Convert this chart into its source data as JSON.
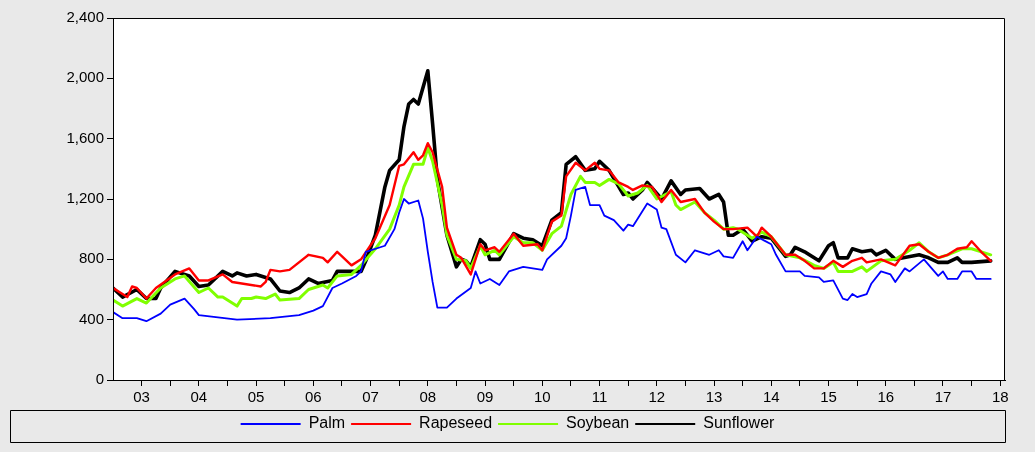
{
  "chart_data": {
    "type": "line",
    "xlim": [
      "2003-01",
      "2018-08"
    ],
    "ylim": [
      0,
      2400
    ],
    "xticks": [
      {
        "value": "2003-07",
        "label": "03"
      },
      {
        "value": "2004-01",
        "label": null
      },
      {
        "value": "2004-07",
        "label": "04"
      },
      {
        "value": "2005-01",
        "label": null
      },
      {
        "value": "2005-07",
        "label": "05"
      },
      {
        "value": "2006-01",
        "label": null
      },
      {
        "value": "2006-07",
        "label": "06"
      },
      {
        "value": "2007-01",
        "label": null
      },
      {
        "value": "2007-07",
        "label": "07"
      },
      {
        "value": "2008-01",
        "label": null
      },
      {
        "value": "2008-07",
        "label": "08"
      },
      {
        "value": "2009-01",
        "label": null
      },
      {
        "value": "2009-07",
        "label": "09"
      },
      {
        "value": "2010-01",
        "label": null
      },
      {
        "value": "2010-07",
        "label": "10"
      },
      {
        "value": "2011-01",
        "label": null
      },
      {
        "value": "2011-07",
        "label": "11"
      },
      {
        "value": "2012-01",
        "label": null
      },
      {
        "value": "2012-07",
        "label": "12"
      },
      {
        "value": "2013-01",
        "label": null
      },
      {
        "value": "2013-07",
        "label": "13"
      },
      {
        "value": "2014-01",
        "label": null
      },
      {
        "value": "2014-07",
        "label": "14"
      },
      {
        "value": "2015-01",
        "label": null
      },
      {
        "value": "2015-07",
        "label": "15"
      },
      {
        "value": "2016-01",
        "label": null
      },
      {
        "value": "2016-07",
        "label": "16"
      },
      {
        "value": "2017-01",
        "label": null
      },
      {
        "value": "2017-07",
        "label": "17"
      },
      {
        "value": "2018-01",
        "label": null
      },
      {
        "value": "2018-07",
        "label": "18"
      }
    ],
    "yticks": [
      {
        "value": 0,
        "label": "0"
      },
      {
        "value": 400,
        "label": "400"
      },
      {
        "value": 800,
        "label": "800"
      },
      {
        "value": 1200,
        "label": "1,200"
      },
      {
        "value": 1600,
        "label": "1,600"
      },
      {
        "value": 2000,
        "label": "2,000"
      },
      {
        "value": 2400,
        "label": "2,400"
      }
    ],
    "grid": false,
    "legend": "bottom",
    "marker": "none",
    "line_style": "solid",
    "series": [
      {
        "name": "Palm",
        "color": "#0000ff",
        "x": [
          "2003-01",
          "2003-03",
          "2003-06",
          "2003-08",
          "2003-11",
          "2004-01",
          "2004-04",
          "2004-06",
          "2004-07",
          "2005-03",
          "2005-10",
          "2006-04",
          "2006-07",
          "2006-09",
          "2006-11",
          "2007-01",
          "2007-04",
          "2007-05",
          "2007-06",
          "2007-10",
          "2007-12",
          "2008-01",
          "2008-02",
          "2008-03",
          "2008-05",
          "2008-06",
          "2008-07",
          "2008-08",
          "2008-09",
          "2008-11",
          "2009-01",
          "2009-04",
          "2009-05",
          "2009-06",
          "2009-08",
          "2009-10",
          "2009-12",
          "2010-03",
          "2010-07",
          "2010-08",
          "2010-11",
          "2010-12",
          "2011-01",
          "2011-02",
          "2011-04",
          "2011-05",
          "2011-07",
          "2011-08",
          "2011-10",
          "2011-12",
          "2012-01",
          "2012-02",
          "2012-05",
          "2012-07",
          "2012-08",
          "2012-09",
          "2012-11",
          "2013-01",
          "2013-03",
          "2013-06",
          "2013-08",
          "2013-09",
          "2013-11",
          "2014-01",
          "2014-02",
          "2014-04",
          "2014-07",
          "2014-08",
          "2014-10",
          "2015-01",
          "2015-02",
          "2015-05",
          "2015-06",
          "2015-08",
          "2015-10",
          "2015-11",
          "2015-12",
          "2016-01",
          "2016-03",
          "2016-04",
          "2016-06",
          "2016-08",
          "2016-09",
          "2016-11",
          "2016-12",
          "2017-03",
          "2017-06",
          "2017-07",
          "2017-08",
          "2017-10",
          "2017-11",
          "2018-01",
          "2018-02",
          "2018-05"
        ],
        "values": [
          450,
          410,
          410,
          390,
          440,
          500,
          540,
          470,
          430,
          400,
          410,
          430,
          460,
          490,
          610,
          640,
          690,
          720,
          850,
          890,
          1000,
          1110,
          1200,
          1170,
          1190,
          1070,
          850,
          650,
          480,
          480,
          540,
          610,
          720,
          640,
          670,
          630,
          720,
          750,
          730,
          800,
          890,
          940,
          1090,
          1260,
          1280,
          1160,
          1160,
          1090,
          1060,
          990,
          1030,
          1020,
          1170,
          1130,
          1010,
          1000,
          830,
          780,
          860,
          830,
          860,
          820,
          810,
          920,
          860,
          950,
          900,
          830,
          720,
          720,
          690,
          680,
          650,
          660,
          540,
          530,
          570,
          550,
          570,
          640,
          720,
          700,
          650,
          740,
          720,
          800,
          690,
          720,
          670,
          670,
          720,
          720,
          670,
          670
        ]
      },
      {
        "name": "Rapeseed",
        "color": "#ff0000",
        "x": [
          "2003-01",
          "2003-04",
          "2003-05",
          "2003-06",
          "2003-08",
          "2003-10",
          "2004-02",
          "2004-05",
          "2004-07",
          "2004-09",
          "2004-12",
          "2005-02",
          "2005-08",
          "2005-09",
          "2005-10",
          "2005-12",
          "2006-02",
          "2006-06",
          "2006-09",
          "2006-10",
          "2006-12",
          "2007-03",
          "2007-05",
          "2007-08",
          "2007-11",
          "2008-01",
          "2008-02",
          "2008-04",
          "2008-05",
          "2008-06",
          "2008-07",
          "2008-08",
          "2008-10",
          "2008-11",
          "2009-01",
          "2009-02",
          "2009-04",
          "2009-06",
          "2009-07",
          "2009-09",
          "2009-10",
          "2010-01",
          "2010-03",
          "2010-06",
          "2010-07",
          "2010-09",
          "2010-11",
          "2010-12",
          "2011-02",
          "2011-04",
          "2011-06",
          "2011-07",
          "2011-09",
          "2011-11",
          "2012-01",
          "2012-02",
          "2012-04",
          "2012-06",
          "2012-08",
          "2012-10",
          "2012-12",
          "2013-03",
          "2013-05",
          "2013-07",
          "2013-09",
          "2013-11",
          "2014-02",
          "2014-04",
          "2014-05",
          "2014-07",
          "2014-10",
          "2014-12",
          "2015-02",
          "2015-04",
          "2015-06",
          "2015-08",
          "2015-10",
          "2015-12",
          "2016-02",
          "2016-03",
          "2016-06",
          "2016-09",
          "2016-12",
          "2017-02",
          "2017-04",
          "2017-06",
          "2017-08",
          "2017-10",
          "2017-12",
          "2018-01",
          "2018-03",
          "2018-05"
        ],
        "values": [
          610,
          550,
          620,
          610,
          540,
          610,
          700,
          740,
          660,
          660,
          700,
          650,
          620,
          650,
          730,
          720,
          730,
          830,
          810,
          780,
          850,
          760,
          800,
          940,
          1160,
          1420,
          1430,
          1510,
          1460,
          1490,
          1570,
          1510,
          1280,
          1010,
          830,
          810,
          700,
          900,
          860,
          880,
          850,
          970,
          890,
          900,
          860,
          1050,
          1090,
          1350,
          1440,
          1390,
          1440,
          1400,
          1390,
          1310,
          1280,
          1260,
          1290,
          1280,
          1180,
          1260,
          1180,
          1200,
          1110,
          1050,
          1000,
          1000,
          1010,
          950,
          1010,
          950,
          830,
          830,
          790,
          740,
          740,
          790,
          750,
          790,
          810,
          780,
          800,
          760,
          890,
          900,
          850,
          810,
          830,
          870,
          880,
          920,
          850,
          790
        ]
      },
      {
        "name": "Soybean",
        "color": "#80ff00",
        "x": [
          "2003-01",
          "2003-03",
          "2003-06",
          "2003-08",
          "2003-11",
          "2004-02",
          "2004-04",
          "2004-07",
          "2004-09",
          "2004-11",
          "2004-12",
          "2005-03",
          "2005-04",
          "2005-06",
          "2005-07",
          "2005-09",
          "2005-11",
          "2005-12",
          "2006-04",
          "2006-06",
          "2006-09",
          "2006-10",
          "2006-12",
          "2007-03",
          "2007-05",
          "2007-08",
          "2007-11",
          "2008-01",
          "2008-02",
          "2008-04",
          "2008-05",
          "2008-06",
          "2008-07",
          "2008-08",
          "2008-10",
          "2008-11",
          "2009-01",
          "2009-03",
          "2009-04",
          "2009-06",
          "2009-07",
          "2009-09",
          "2009-10",
          "2010-01",
          "2010-03",
          "2010-05",
          "2010-07",
          "2010-09",
          "2010-11",
          "2011-01",
          "2011-03",
          "2011-04",
          "2011-06",
          "2011-07",
          "2011-09",
          "2011-11",
          "2012-01",
          "2012-03",
          "2012-05",
          "2012-07",
          "2012-10",
          "2012-11",
          "2012-12",
          "2013-03",
          "2013-05",
          "2013-07",
          "2013-09",
          "2013-11",
          "2013-12",
          "2014-03",
          "2014-05",
          "2014-07",
          "2014-10",
          "2015-01",
          "2015-04",
          "2015-06",
          "2015-08",
          "2015-09",
          "2015-12",
          "2016-02",
          "2016-03",
          "2016-06",
          "2016-09",
          "2016-12",
          "2017-02",
          "2017-04",
          "2017-06",
          "2017-08",
          "2017-11",
          "2018-01",
          "2018-05"
        ],
        "values": [
          530,
          490,
          540,
          510,
          610,
          670,
          690,
          580,
          610,
          550,
          550,
          490,
          540,
          540,
          550,
          540,
          570,
          530,
          540,
          600,
          630,
          610,
          690,
          700,
          760,
          870,
          1000,
          1160,
          1280,
          1430,
          1430,
          1430,
          1540,
          1450,
          1160,
          960,
          800,
          790,
          740,
          890,
          830,
          860,
          830,
          950,
          910,
          910,
          860,
          970,
          1020,
          1230,
          1350,
          1310,
          1310,
          1290,
          1330,
          1300,
          1220,
          1240,
          1290,
          1200,
          1250,
          1160,
          1130,
          1180,
          1110,
          1060,
          1000,
          1010,
          1000,
          940,
          980,
          950,
          830,
          810,
          760,
          740,
          780,
          720,
          720,
          750,
          720,
          790,
          800,
          860,
          910,
          850,
          810,
          830,
          870,
          870,
          830
        ]
      },
      {
        "name": "Sunflower",
        "color": "#000000",
        "x": [
          "2003-01",
          "2003-03",
          "2003-06",
          "2003-08",
          "2003-10",
          "2003-11",
          "2004-02",
          "2004-05",
          "2004-07",
          "2004-09",
          "2004-12",
          "2005-02",
          "2005-03",
          "2005-05",
          "2005-07",
          "2005-10",
          "2005-12",
          "2006-02",
          "2006-04",
          "2006-06",
          "2006-08",
          "2006-11",
          "2006-12",
          "2007-05",
          "2007-06",
          "2007-08",
          "2007-10",
          "2007-11",
          "2008-01",
          "2008-02",
          "2008-03",
          "2008-04",
          "2008-05",
          "2008-07",
          "2008-08",
          "2008-09",
          "2008-11",
          "2009-01",
          "2009-02",
          "2009-03",
          "2009-04",
          "2009-06",
          "2009-07",
          "2009-08",
          "2009-10",
          "2010-01",
          "2010-03",
          "2010-05",
          "2010-07",
          "2010-09",
          "2010-11",
          "2010-12",
          "2011-02",
          "2011-04",
          "2011-06",
          "2011-07",
          "2011-09",
          "2011-12",
          "2012-01",
          "2012-02",
          "2012-04",
          "2012-05",
          "2012-08",
          "2012-10",
          "2012-12",
          "2013-01",
          "2013-04",
          "2013-06",
          "2013-08",
          "2013-09",
          "2013-10",
          "2013-11",
          "2014-01",
          "2014-03",
          "2014-05",
          "2014-07",
          "2014-10",
          "2014-11",
          "2014-12",
          "2015-02",
          "2015-05",
          "2015-07",
          "2015-08",
          "2015-09",
          "2015-11",
          "2015-12",
          "2016-02",
          "2016-04",
          "2016-05",
          "2016-07",
          "2016-09",
          "2017-02",
          "2017-04",
          "2017-06",
          "2017-08",
          "2017-10",
          "2017-11",
          "2018-01",
          "2018-05"
        ],
        "values": [
          610,
          550,
          600,
          540,
          540,
          610,
          720,
          690,
          620,
          630,
          720,
          690,
          710,
          690,
          700,
          670,
          590,
          580,
          610,
          670,
          640,
          660,
          720,
          720,
          790,
          960,
          1280,
          1390,
          1460,
          1680,
          1830,
          1860,
          1830,
          2050,
          1700,
          1330,
          960,
          750,
          800,
          790,
          750,
          930,
          900,
          800,
          800,
          970,
          940,
          930,
          890,
          1060,
          1110,
          1430,
          1480,
          1390,
          1400,
          1450,
          1390,
          1230,
          1240,
          1200,
          1260,
          1310,
          1200,
          1320,
          1230,
          1260,
          1270,
          1200,
          1230,
          1180,
          960,
          960,
          1000,
          920,
          950,
          940,
          820,
          830,
          880,
          850,
          790,
          890,
          910,
          810,
          810,
          870,
          850,
          860,
          830,
          860,
          800,
          830,
          810,
          780,
          780,
          810,
          780,
          780,
          790
        ]
      }
    ]
  }
}
